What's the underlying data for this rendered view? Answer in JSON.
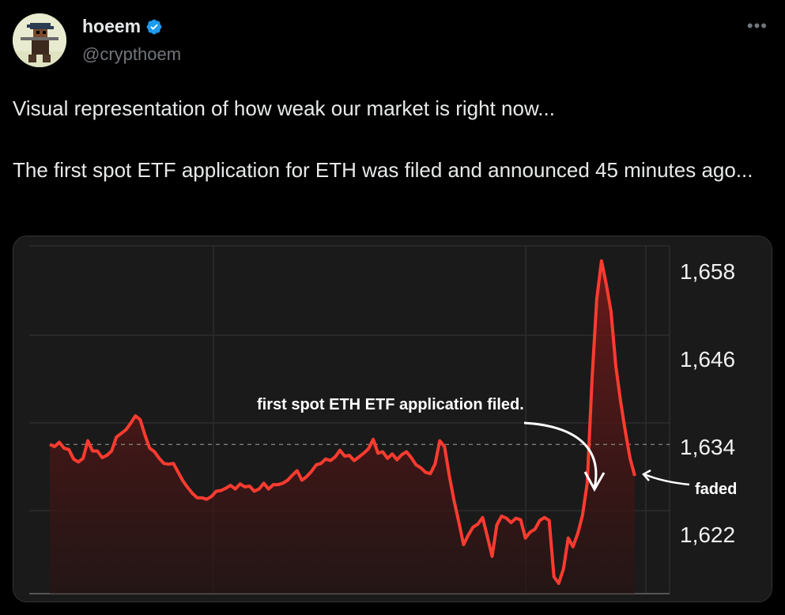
{
  "tweet": {
    "author_name": "hoeem",
    "handle": "@crypthoem",
    "more_icon": "more-horizontal-icon",
    "verified_icon": "verified-badge-icon",
    "verified_color": "#1d9bf0",
    "text": "Visual representation of how weak our market is right now...\n\nThe first spot ETF application for ETH was filed and announced 45 minutes ago..."
  },
  "chart_data": {
    "type": "line",
    "y_ticks": [
      "1,658",
      "1,646",
      "1,634",
      "1,622"
    ],
    "ylim": [
      1612,
      1662
    ],
    "reference_line": 1634.3,
    "line_color": "#ff3b30",
    "annotations": {
      "filed": "first spot ETH ETF application filed.",
      "faded": "faded"
    },
    "y": [
      1634.3,
      1634.0,
      1634.6,
      1633.8,
      1633.6,
      1632.3,
      1631.9,
      1632.4,
      1634.8,
      1633.4,
      1633.4,
      1632.5,
      1632.8,
      1633.4,
      1635.3,
      1635.8,
      1636.3,
      1637.2,
      1638.2,
      1637.7,
      1635.6,
      1633.8,
      1633.3,
      1632.4,
      1631.7,
      1631.6,
      1631.7,
      1630.5,
      1629.3,
      1628.4,
      1627.6,
      1627.0,
      1627.0,
      1626.8,
      1627.2,
      1627.9,
      1628.0,
      1628.3,
      1628.7,
      1628.2,
      1628.9,
      1628.5,
      1628.6,
      1627.9,
      1628.2,
      1629.0,
      1628.2,
      1628.8,
      1628.8,
      1629.0,
      1629.4,
      1630.1,
      1630.7,
      1629.4,
      1629.9,
      1630.6,
      1631.5,
      1631.7,
      1632.3,
      1632.1,
      1632.6,
      1633.5,
      1632.7,
      1632.8,
      1632.1,
      1632.6,
      1633.1,
      1633.7,
      1635.0,
      1633.1,
      1633.3,
      1632.4,
      1633.0,
      1632.2,
      1632.9,
      1633.3,
      1632.5,
      1631.5,
      1631.1,
      1630.5,
      1630.3,
      1631.6,
      1634.8,
      1634.0,
      1630.0,
      1626.6,
      1623.7,
      1620.6,
      1621.9,
      1623.0,
      1623.4,
      1624.3,
      1621.7,
      1619.0,
      1623.3,
      1624.5,
      1624.2,
      1623.6,
      1624.2,
      1624.0,
      1621.5,
      1622.3,
      1622.7,
      1623.9,
      1624.3,
      1623.9,
      1616.2,
      1615.3,
      1617.3,
      1621.5,
      1620.3,
      1622.1,
      1624.6,
      1629.0,
      1643.2,
      1654.2,
      1659.4,
      1656.2,
      1652.5,
      1645.1,
      1640.2,
      1636.1,
      1632.4,
      1630.0
    ]
  }
}
